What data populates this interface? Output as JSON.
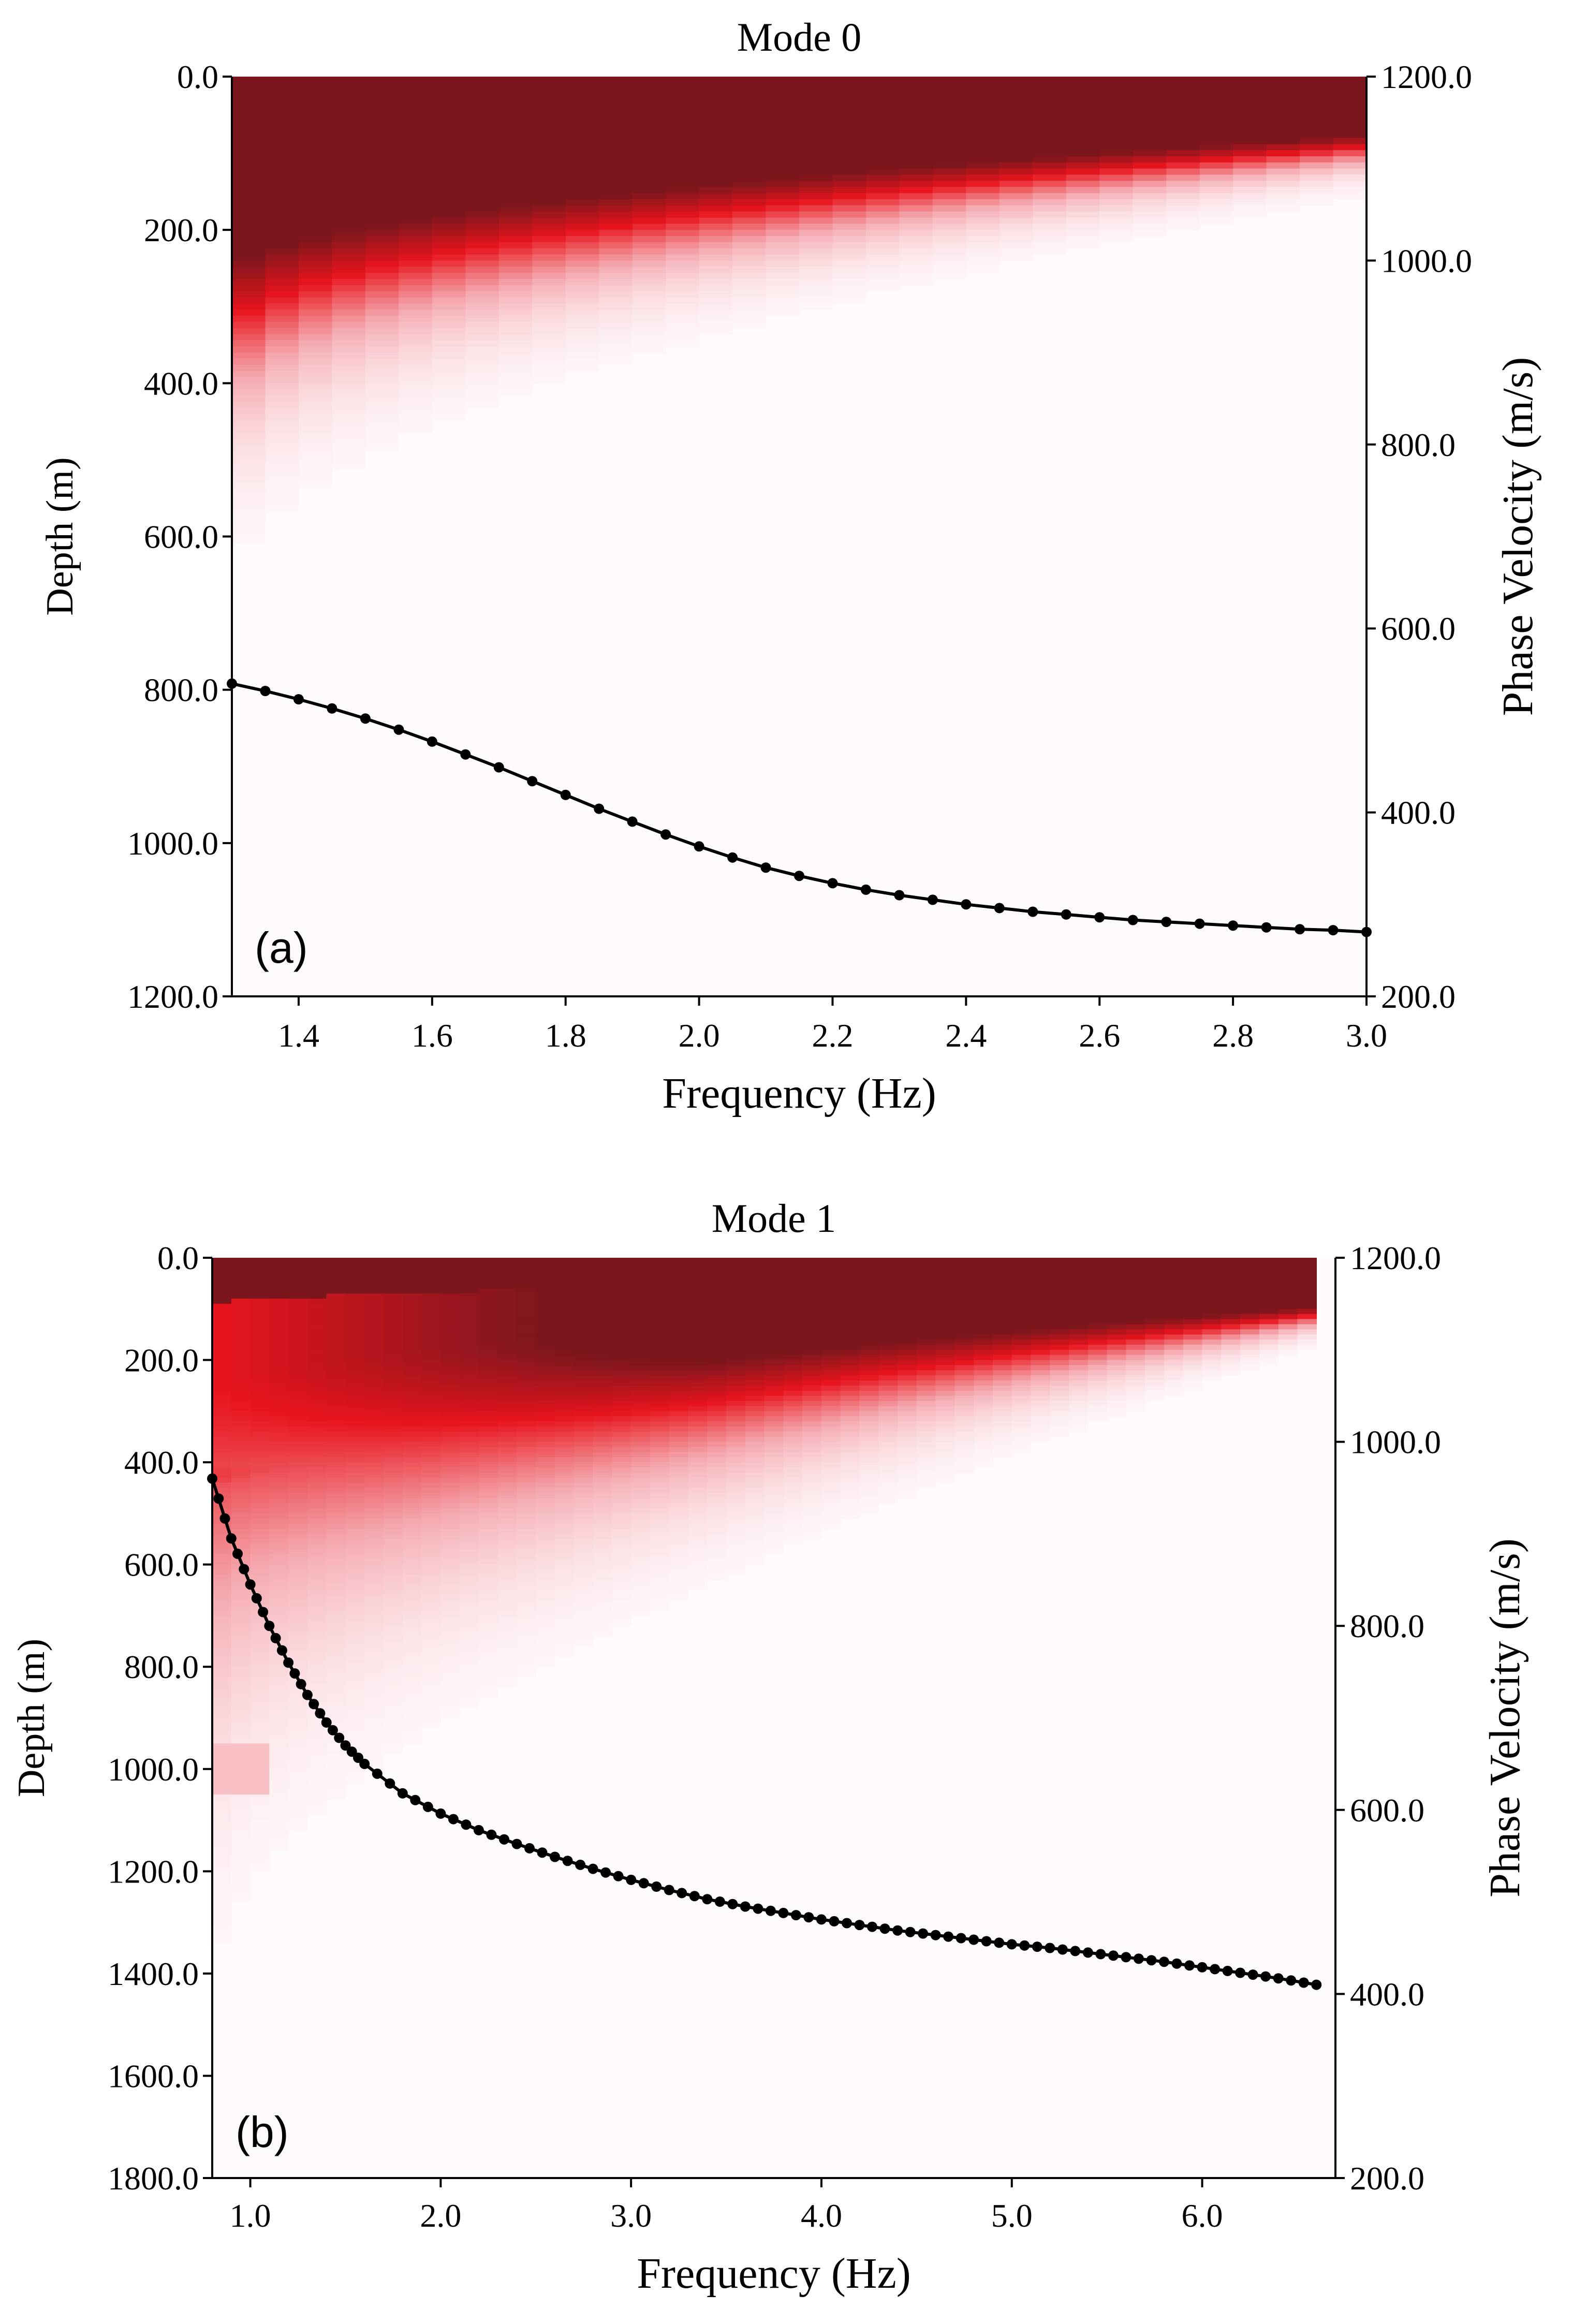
{
  "colors": {
    "dark_red": "#7b161d",
    "red": "#e8141c",
    "background": "#fffafc",
    "curve": "#000000"
  },
  "chart_data": [
    {
      "type": "heatmap",
      "title": "Mode 0",
      "panel_label": "(a)",
      "xlabel": "Frequency (Hz)",
      "ylabel_left": "Depth (m)",
      "ylabel_right": "Phase Velocity (m/s)",
      "xlim": [
        1.3,
        3.0
      ],
      "ylim_left": [
        0,
        1200
      ],
      "ylim_right": [
        200,
        1200
      ],
      "x_ticks": [
        1.4,
        1.6,
        1.8,
        2.0,
        2.2,
        2.4,
        2.6,
        2.8,
        3.0
      ],
      "x_tick_labels": [
        "1.4",
        "1.6",
        "1.8",
        "2.0",
        "2.2",
        "2.4",
        "2.6",
        "2.8",
        "3.0"
      ],
      "y_left_ticks": [
        0,
        200,
        400,
        600,
        800,
        1000,
        1200
      ],
      "y_left_tick_labels": [
        "0.0",
        "200.0",
        "400.0",
        "600.0",
        "800.0",
        "1000.0",
        "1200.0"
      ],
      "y_right_ticks": [
        1200,
        1000,
        800,
        600,
        400,
        200
      ],
      "y_right_tick_labels": [
        "1200.0",
        "1000.0",
        "800.0",
        "600.0",
        "400.0",
        "200.0"
      ],
      "heatmap_description": "depth sensitivity kernel, dark red near surface, red transition band, decaying to near-white with depth",
      "sensitivity_model": {
        "freq_range": [
          1.3,
          3.0
        ],
        "dark_depth_range": [
          190,
          65
        ],
        "fade_width_range": [
          320,
          60
        ]
      },
      "dispersion_curve": {
        "name": "phase velocity",
        "x": [
          1.3,
          1.35,
          1.4,
          1.45,
          1.5,
          1.55,
          1.6,
          1.65,
          1.7,
          1.75,
          1.8,
          1.85,
          1.9,
          1.95,
          2.0,
          2.05,
          2.1,
          2.15,
          2.2,
          2.25,
          2.3,
          2.35,
          2.4,
          2.45,
          2.5,
          2.55,
          2.6,
          2.65,
          2.7,
          2.75,
          2.8,
          2.85,
          2.9,
          2.95,
          3.0
        ],
        "y": [
          540,
          532,
          523,
          513,
          502,
          490,
          477,
          463,
          449,
          434,
          419,
          404,
          390,
          376,
          363,
          351,
          340,
          331,
          323,
          316,
          310,
          305,
          300,
          296,
          292,
          289,
          286,
          283,
          281,
          279,
          277,
          275,
          273,
          272,
          270
        ]
      }
    },
    {
      "type": "heatmap",
      "title": "Mode 1",
      "panel_label": "(b)",
      "xlabel": "Frequency (Hz)",
      "ylabel_left": "Depth (m)",
      "ylabel_right": "Phase Velocity (m/s)",
      "xlim": [
        0.8,
        6.7
      ],
      "ylim_left": [
        0,
        1800
      ],
      "ylim_right": [
        200,
        1200
      ],
      "x_ticks": [
        1.0,
        2.0,
        3.0,
        4.0,
        5.0,
        6.0
      ],
      "x_tick_labels": [
        "1.0",
        "2.0",
        "3.0",
        "4.0",
        "5.0",
        "6.0"
      ],
      "y_left_ticks": [
        0,
        200,
        400,
        600,
        800,
        1000,
        1200,
        1400,
        1600,
        1800
      ],
      "y_left_tick_labels": [
        "0.0",
        "200.0",
        "400.0",
        "600.0",
        "800.0",
        "1000.0",
        "1200.0",
        "1400.0",
        "1600.0",
        "1800.0"
      ],
      "y_right_ticks": [
        1200,
        1000,
        800,
        600,
        400,
        200
      ],
      "y_right_tick_labels": [
        "1200.0",
        "1000.0",
        "800.0",
        "600.0",
        "400.0",
        "200.0"
      ],
      "heatmap_description": "depth sensitivity kernel with two lobes at low frequency, dark red near surface, pink tail to ~1200 m at lowest frequency",
      "sensitivity_model": {
        "freq_range": [
          0.8,
          6.6
        ],
        "dark_depth_range": [
          230,
          85
        ],
        "fade_width_range": [
          900,
          60
        ]
      },
      "dispersion_curve": {
        "name": "phase velocity",
        "x": [
          0.8,
          0.9,
          1.0,
          1.1,
          1.2,
          1.3,
          1.4,
          1.5,
          1.6,
          1.8,
          2.0,
          2.2,
          2.4,
          2.6,
          2.8,
          3.0,
          3.2,
          3.4,
          3.6,
          3.8,
          4.0,
          4.2,
          4.4,
          4.6,
          4.8,
          5.0,
          5.2,
          5.4,
          5.6,
          5.8,
          6.0,
          6.2,
          6.4,
          6.6
        ],
        "y": [
          960,
          895,
          845,
          800,
          760,
          725,
          695,
          670,
          650,
          618,
          596,
          578,
          563,
          549,
          536,
          524,
          513,
          503,
          495,
          488,
          481,
          475,
          469,
          464,
          459,
          454,
          450,
          445,
          440,
          435,
          429,
          423,
          417,
          410
        ]
      }
    }
  ]
}
